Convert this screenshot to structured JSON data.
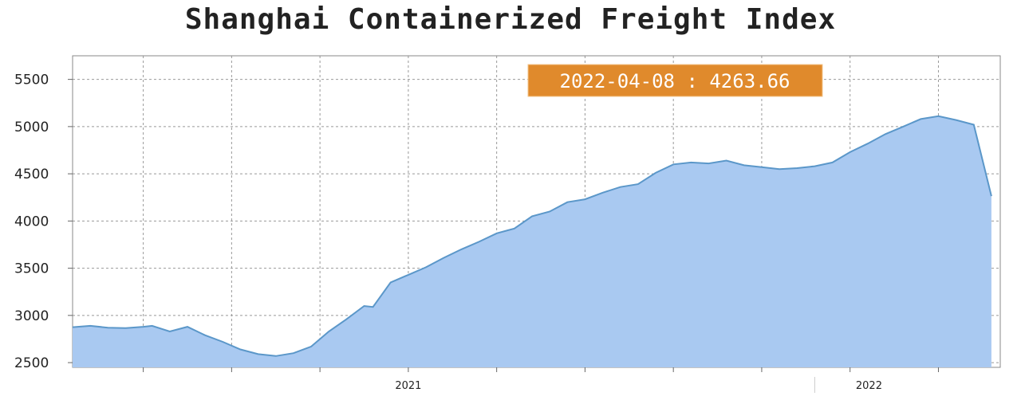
{
  "title": "Shanghai Containerized Freight Index",
  "tooltip": {
    "label": "2022-04-08 : 4263.66"
  },
  "colors": {
    "area_fill": "#a9c9f1",
    "line": "#5b97c9",
    "grid": "#999999",
    "tooltip": "#e08a2c"
  },
  "chart_data": {
    "type": "area",
    "title": "Shanghai Containerized Freight Index",
    "xlabel": "",
    "ylabel": "",
    "ylim": [
      2450,
      5750
    ],
    "xlim": [
      "2020-04-10",
      "2022-04-15"
    ],
    "yticks": [
      2500,
      3000,
      3500,
      4000,
      4500,
      5000,
      5500
    ],
    "xtick_labels": [
      {
        "date": "2021-01-01",
        "label": "2021"
      },
      {
        "date": "2022-01-01",
        "label": "2022"
      }
    ],
    "grid": true,
    "legend": "none",
    "series": [
      {
        "x": [
          "2020-04-10",
          "2020-04-24",
          "2020-05-08",
          "2020-05-22",
          "2020-06-05",
          "2020-06-12",
          "2020-06-26",
          "2020-07-10",
          "2020-07-24",
          "2020-08-07",
          "2020-08-21",
          "2020-09-04",
          "2020-09-18",
          "2020-10-02",
          "2020-10-16",
          "2020-10-30",
          "2020-11-13",
          "2020-11-27",
          "2020-12-04",
          "2020-12-18",
          "2021-01-01",
          "2021-01-15",
          "2021-01-29",
          "2021-02-12",
          "2021-02-26",
          "2021-03-12",
          "2021-03-26",
          "2021-04-09",
          "2021-04-23",
          "2021-05-07",
          "2021-05-21",
          "2021-06-04",
          "2021-06-18",
          "2021-07-02",
          "2021-07-16",
          "2021-07-30",
          "2021-08-13",
          "2021-08-27",
          "2021-09-10",
          "2021-09-24",
          "2021-10-08",
          "2021-10-22",
          "2021-11-05",
          "2021-11-19",
          "2021-12-03",
          "2021-12-17",
          "2021-12-31",
          "2022-01-14",
          "2022-01-28",
          "2022-02-11",
          "2022-02-25",
          "2022-03-11",
          "2022-03-25",
          "2022-04-08"
        ],
        "values": [
          2875,
          2890,
          2870,
          2865,
          2880,
          2890,
          2830,
          2880,
          2790,
          2720,
          2640,
          2590,
          2570,
          2600,
          2670,
          2830,
          2960,
          3100,
          3090,
          3350,
          3430,
          3510,
          3610,
          3700,
          3780,
          3870,
          3920,
          4050,
          4100,
          4200,
          4230,
          4300,
          4360,
          4390,
          4510,
          4600,
          4620,
          4610,
          4640,
          4590,
          4570,
          4550,
          4560,
          4580,
          4620,
          4730,
          4820,
          4920,
          5000,
          5080,
          5110,
          5070,
          5020,
          4263.66
        ]
      }
    ]
  }
}
